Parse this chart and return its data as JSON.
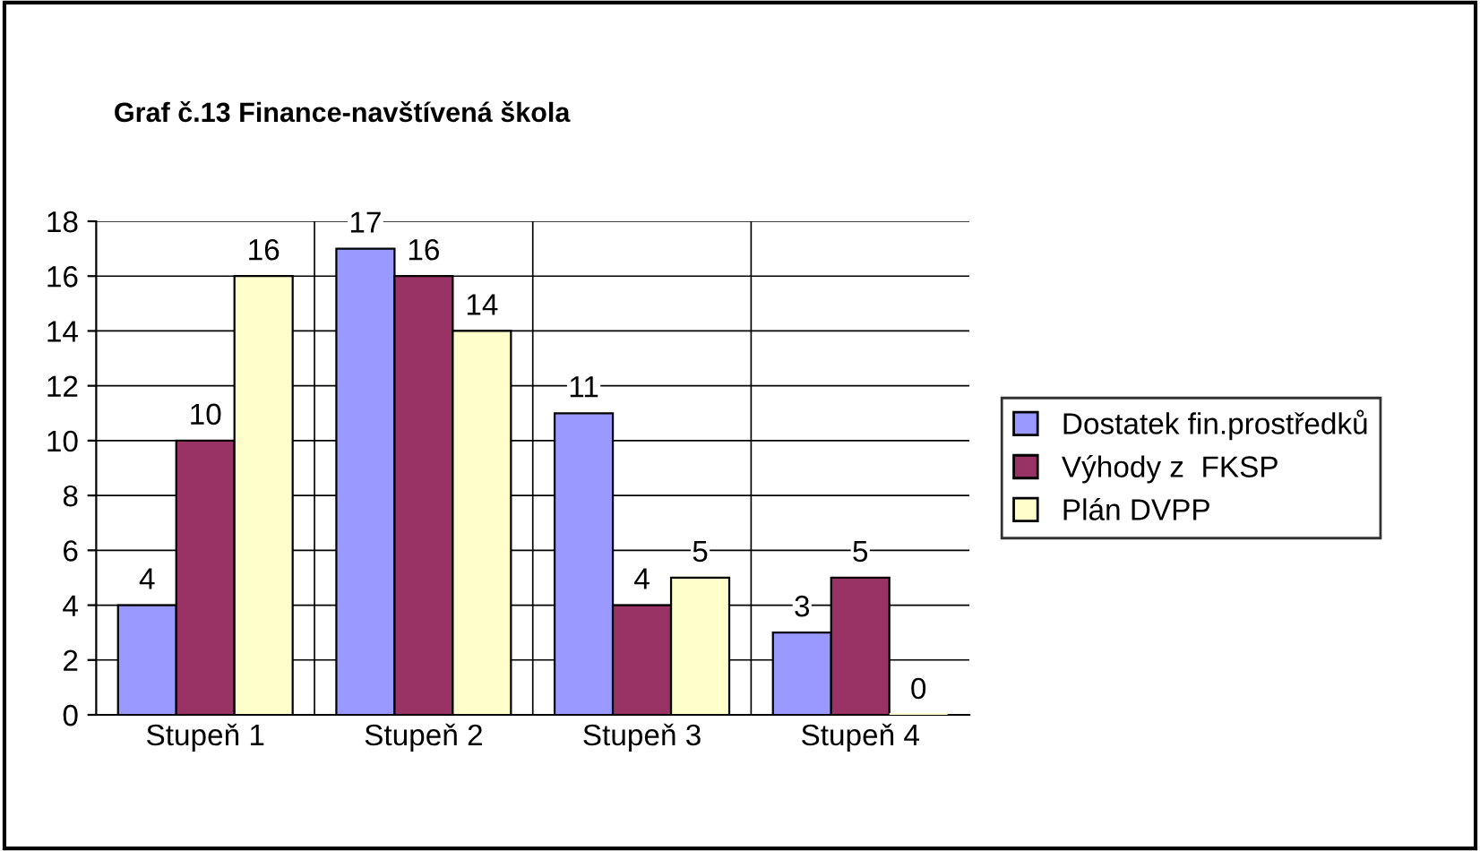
{
  "chart_data": {
    "type": "bar",
    "title": "Graf č.13 Finance-navštívená škola",
    "categories": [
      "Stupeň 1",
      "Stupeň 2",
      "Stupeň 3",
      "Stupeň 4"
    ],
    "series": [
      {
        "name": "Dostatek fin.prostředků",
        "color": "#9999ff",
        "values": [
          4,
          17,
          11,
          3
        ]
      },
      {
        "name": "Výhody z  FKSP",
        "color": "#993366",
        "values": [
          10,
          16,
          4,
          5
        ]
      },
      {
        "name": "Plán DVPP",
        "color": "#ffffcc",
        "values": [
          16,
          14,
          5,
          0
        ]
      }
    ],
    "ylim": [
      0,
      18
    ],
    "yticks": [
      0,
      2,
      4,
      6,
      8,
      10,
      12,
      14,
      16,
      18
    ],
    "grid": true,
    "legend": "right",
    "data_labels": true
  }
}
